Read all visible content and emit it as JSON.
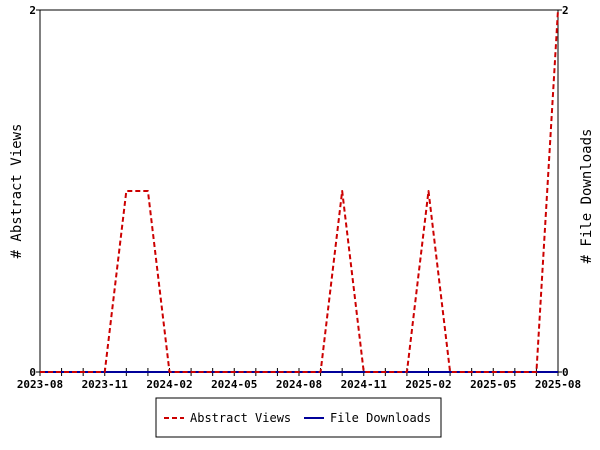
{
  "chart_data": {
    "type": "line",
    "xlabel": "",
    "ylabel_left": "# Abstract Views",
    "ylabel_right": "# File Downloads",
    "x_tick_labels": [
      "2023-08",
      "2023-11",
      "2024-02",
      "2024-05",
      "2024-08",
      "2024-11",
      "2025-02",
      "2025-05",
      "2025-08"
    ],
    "x_range": [
      "2023-08",
      "2025-08"
    ],
    "y_left_range": [
      0,
      2
    ],
    "y_right_range": [
      0,
      2
    ],
    "y_left_ticks": [
      "0",
      "2"
    ],
    "y_right_ticks": [
      "0",
      "2"
    ],
    "grid": false,
    "legend_position": "bottom-center",
    "months": [
      "2023-08",
      "2023-09",
      "2023-10",
      "2023-11",
      "2023-12",
      "2024-01",
      "2024-02",
      "2024-03",
      "2024-04",
      "2024-05",
      "2024-06",
      "2024-07",
      "2024-08",
      "2024-09",
      "2024-10",
      "2024-11",
      "2024-12",
      "2025-01",
      "2025-02",
      "2025-03",
      "2025-04",
      "2025-05",
      "2025-06",
      "2025-07",
      "2025-08"
    ],
    "series": [
      {
        "name": "Abstract Views",
        "color": "#cc0000",
        "dash": "dashed",
        "values": [
          0,
          0,
          0,
          0,
          1,
          1,
          0,
          0,
          0,
          0,
          0,
          0,
          0,
          0,
          1,
          0,
          0,
          0,
          1,
          0,
          0,
          0,
          0,
          0,
          2
        ]
      },
      {
        "name": "File Downloads",
        "color": "#000099",
        "dash": "solid",
        "values": [
          0,
          0,
          0,
          0,
          0,
          0,
          0,
          0,
          0,
          0,
          0,
          0,
          0,
          0,
          0,
          0,
          0,
          0,
          0,
          0,
          0,
          0,
          0,
          0,
          0
        ]
      }
    ]
  }
}
